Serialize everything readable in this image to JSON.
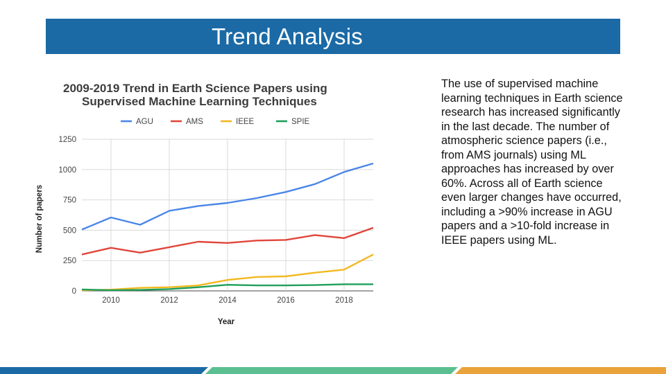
{
  "slide": {
    "title": "Trend Analysis",
    "body": "The use of supervised machine learning techniques in Earth science research has increased significantly in the last decade. The number of atmospheric science papers (i.e., from AMS journals) using ML approaches has increased by over 60%. Across all of Earth science even larger changes have occurred, including a >90% increase in AGU papers and a >10-fold increase in IEEE papers using ML."
  },
  "colors": {
    "title_bar": "#1b6aa5",
    "footer_segments": [
      "#1b6aa5",
      "#5bbf91",
      "#e9a33a"
    ]
  },
  "chart_data": {
    "type": "line",
    "title": [
      "2009-2019 Trend in Earth Science Papers using",
      "Supervised Machine Learning Techniques"
    ],
    "xlabel": "Year",
    "ylabel": "Number of papers",
    "x": [
      2009,
      2010,
      2011,
      2012,
      2013,
      2014,
      2015,
      2016,
      2017,
      2018,
      2019
    ],
    "xticks": [
      2010,
      2012,
      2014,
      2016,
      2018
    ],
    "yticks": [
      0,
      250,
      500,
      750,
      1000,
      1250
    ],
    "xlim": [
      2009,
      2019
    ],
    "ylim": [
      0,
      1250
    ],
    "grid": true,
    "legend_position": "top",
    "series": [
      {
        "name": "AGU",
        "color": "#4a86e8",
        "values": [
          505,
          605,
          545,
          660,
          700,
          725,
          765,
          815,
          880,
          980,
          1050
        ]
      },
      {
        "name": "AMS",
        "color": "#e0463a",
        "values": [
          300,
          355,
          315,
          360,
          405,
          395,
          415,
          420,
          460,
          435,
          520
        ]
      },
      {
        "name": "IEEE",
        "color": "#f2b820",
        "values": [
          5,
          10,
          25,
          30,
          45,
          90,
          115,
          120,
          150,
          175,
          300
        ]
      },
      {
        "name": "SPIE",
        "color": "#1e9f5a",
        "values": [
          12,
          5,
          8,
          15,
          30,
          50,
          45,
          45,
          48,
          55,
          55
        ]
      }
    ]
  }
}
